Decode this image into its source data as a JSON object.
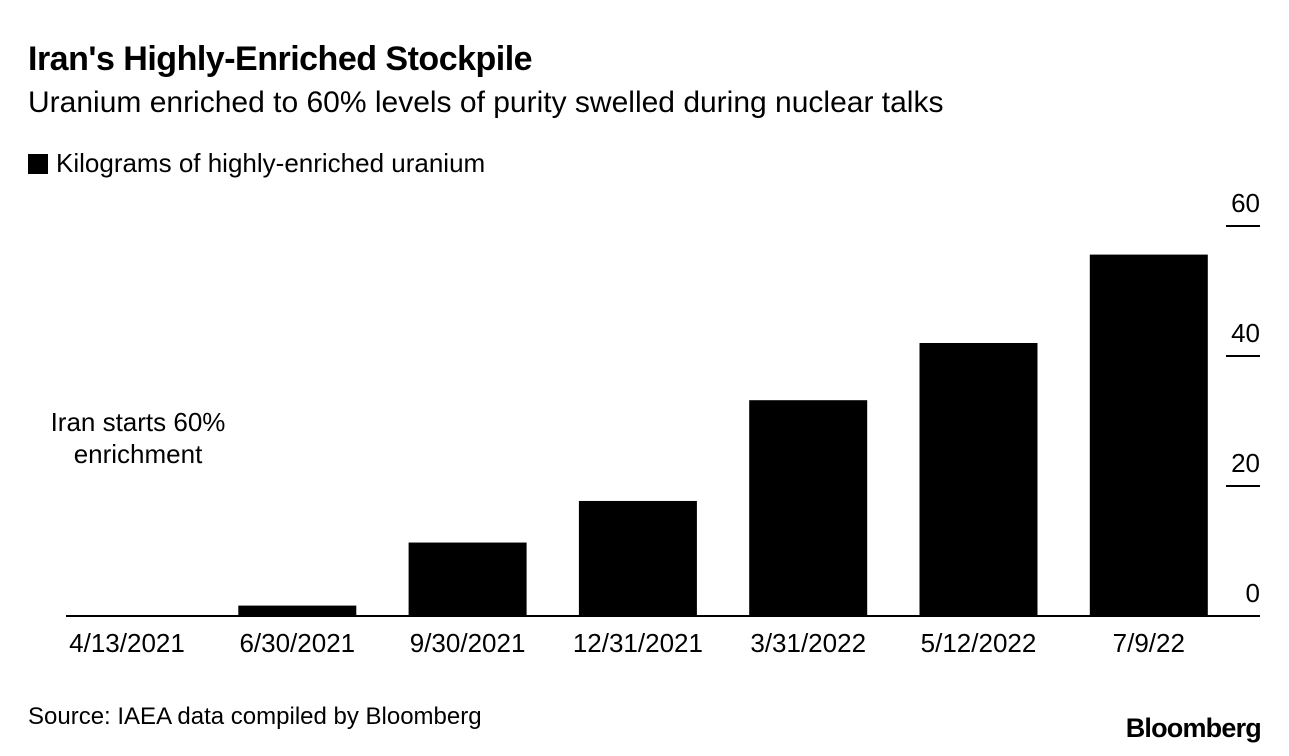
{
  "chart_data": {
    "type": "bar",
    "title": "Iran's Highly-Enriched Stockpile",
    "subtitle": "Uranium enriched to 60% levels of purity swelled during nuclear talks",
    "legend_label": "Kilograms of highly-enriched uranium",
    "categories": [
      "4/13/2021",
      "6/30/2021",
      "9/30/2021",
      "12/31/2021",
      "3/31/2022",
      "5/12/2022",
      "7/9/22"
    ],
    "series": [
      {
        "name": "Kilograms of highly-enriched uranium",
        "values": [
          0,
          1.6,
          11.3,
          17.7,
          33.2,
          42,
          55.6
        ]
      }
    ],
    "yticks": [
      0,
      20,
      40,
      60
    ],
    "ylim": [
      0,
      60
    ],
    "y_axis_side": "right",
    "bar_color": "#000000",
    "annotation": "Iran starts 60% enrichment",
    "source": "Source: IAEA data compiled by Bloomberg",
    "brand": "Bloomberg"
  }
}
